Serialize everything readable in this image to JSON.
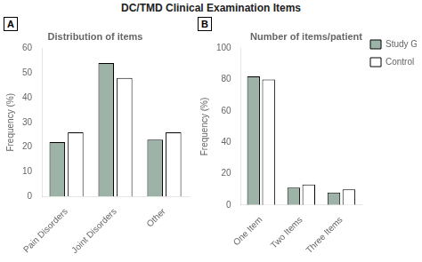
{
  "title": "DC/TMD Clinical Examination Items",
  "chart_data": [
    {
      "type": "bar",
      "title": "Distribution of items",
      "annotations": [
        "A"
      ],
      "categories": [
        "Pain Disorders",
        "Joint Disorders",
        "Other"
      ],
      "series": [
        {
          "name": "Study Group",
          "color": "#9EB3A8",
          "values": [
            22,
            54,
            23
          ]
        },
        {
          "name": "Control Group",
          "color": "#FFFFFF",
          "values": [
            26,
            48,
            26
          ]
        }
      ],
      "ylabel": "Frequency (%)",
      "ylim": [
        0,
        60
      ],
      "yticks": [
        0,
        10,
        20,
        30,
        40,
        50,
        60
      ],
      "grid": false
    },
    {
      "type": "bar",
      "title": "Number of items/patient",
      "annotations": [
        "B"
      ],
      "categories": [
        "One Item",
        "Two Items",
        "Three Items"
      ],
      "series": [
        {
          "name": "Study Group",
          "color": "#9EB3A8",
          "values": [
            82,
            11,
            8
          ]
        },
        {
          "name": "Control Group",
          "color": "#FFFFFF",
          "values": [
            80,
            13,
            10
          ]
        }
      ],
      "ylabel": "Frequency (%)",
      "ylim": [
        0,
        100
      ],
      "yticks": [
        0,
        20,
        40,
        60,
        80,
        100
      ],
      "grid": false,
      "legend": "right"
    }
  ]
}
